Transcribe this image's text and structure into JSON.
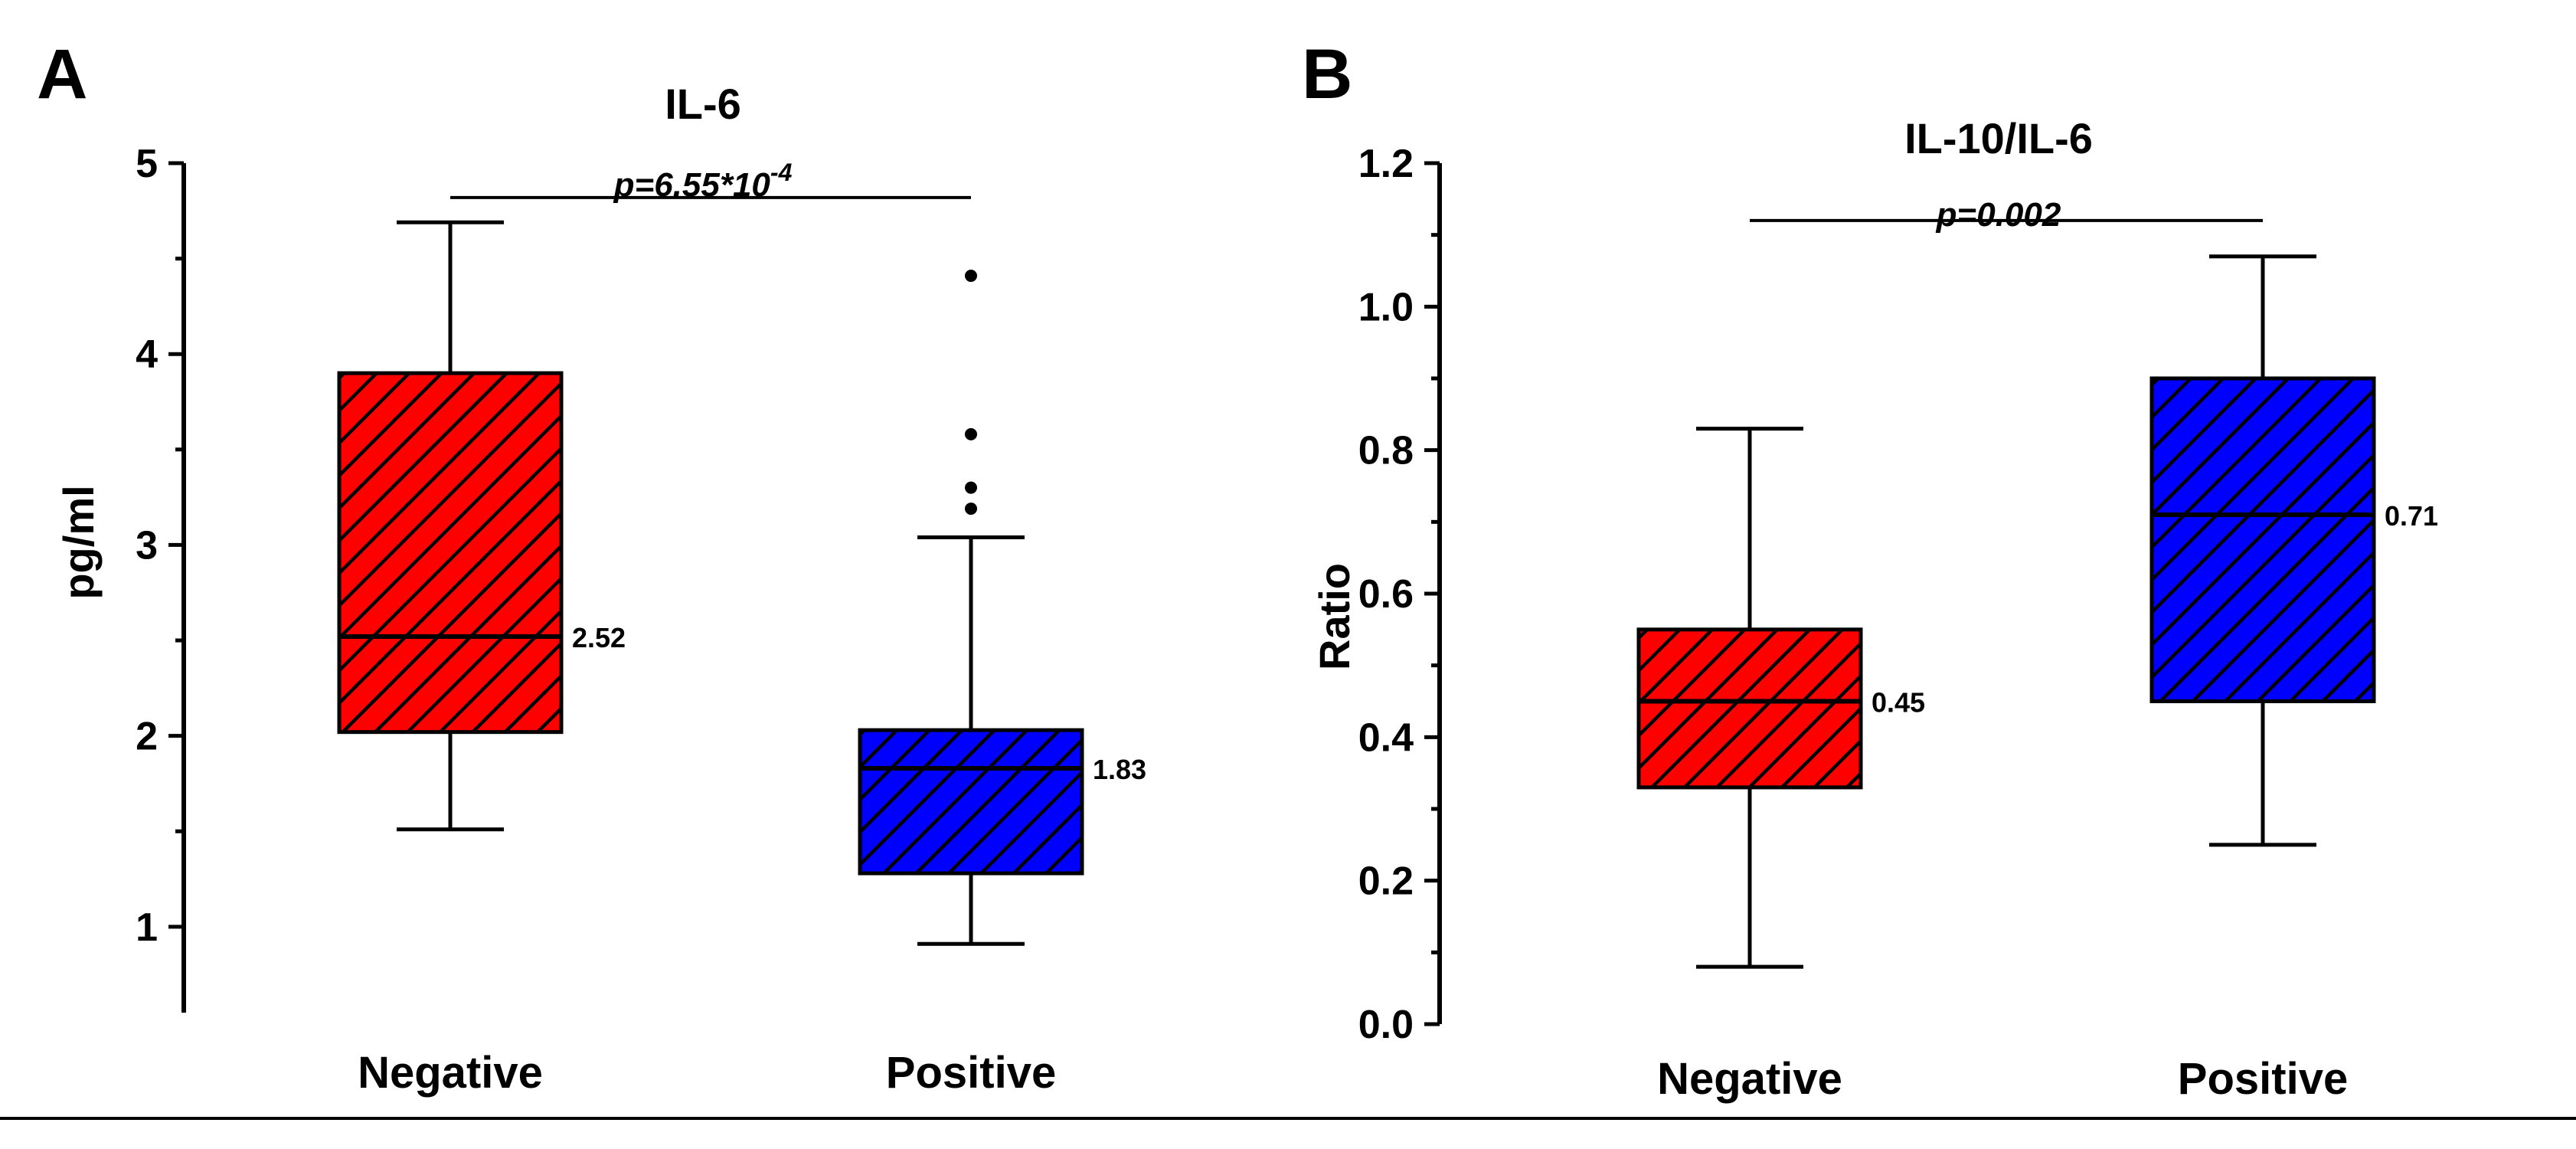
{
  "colors": {
    "negative": "#ff0000",
    "positive": "#0000ff",
    "hatch": "#000000",
    "axis": "#000000"
  },
  "chart_data": [
    {
      "type": "box",
      "panel_letter": "A",
      "title": "IL-6",
      "xlabel": "",
      "ylabel": "pg/ml",
      "ylim": [
        0.55,
        5
      ],
      "yticks": [
        1,
        2,
        3,
        4,
        5
      ],
      "ytick_labels": [
        "1",
        "2",
        "3",
        "4",
        "5"
      ],
      "categories": [
        "Negative",
        "Positive"
      ],
      "boxes": [
        {
          "category": "Negative",
          "color": "#ff0000",
          "whisker_low": 1.51,
          "q1": 2.02,
          "median": 2.52,
          "q3": 3.9,
          "whisker_high": 4.69,
          "outliers": [],
          "median_label": "2.52"
        },
        {
          "category": "Positive",
          "color": "#0000ff",
          "whisker_low": 0.91,
          "q1": 1.28,
          "median": 1.83,
          "q3": 2.03,
          "whisker_high": 3.04,
          "outliers": [
            3.19,
            3.3,
            3.58,
            4.41
          ],
          "median_label": "1.83"
        }
      ],
      "significance": {
        "text": "p=6.55*10",
        "exponent": "-4",
        "y": 4.82
      }
    },
    {
      "type": "box",
      "panel_letter": "B",
      "title": "IL-10/IL-6",
      "xlabel": "",
      "ylabel": "Ratio",
      "ylim": [
        0,
        1.2
      ],
      "yticks": [
        0,
        0.2,
        0.4,
        0.6,
        0.8,
        1.0,
        1.2
      ],
      "ytick_labels": [
        "0.0",
        "0.2",
        "0.4",
        "0.6",
        "0.8",
        "1.0",
        "1.2"
      ],
      "categories": [
        "Negative",
        "Positive"
      ],
      "boxes": [
        {
          "category": "Negative",
          "color": "#ff0000",
          "whisker_low": 0.08,
          "q1": 0.33,
          "median": 0.45,
          "q3": 0.55,
          "whisker_high": 0.83,
          "outliers": [],
          "median_label": "0.45"
        },
        {
          "category": "Positive",
          "color": "#0000ff",
          "whisker_low": 0.25,
          "q1": 0.45,
          "median": 0.71,
          "q3": 0.9,
          "whisker_high": 1.07,
          "outliers": [],
          "median_label": "0.71"
        }
      ],
      "significance": {
        "text": "p=0.002",
        "exponent": "",
        "y": 1.12
      }
    }
  ]
}
